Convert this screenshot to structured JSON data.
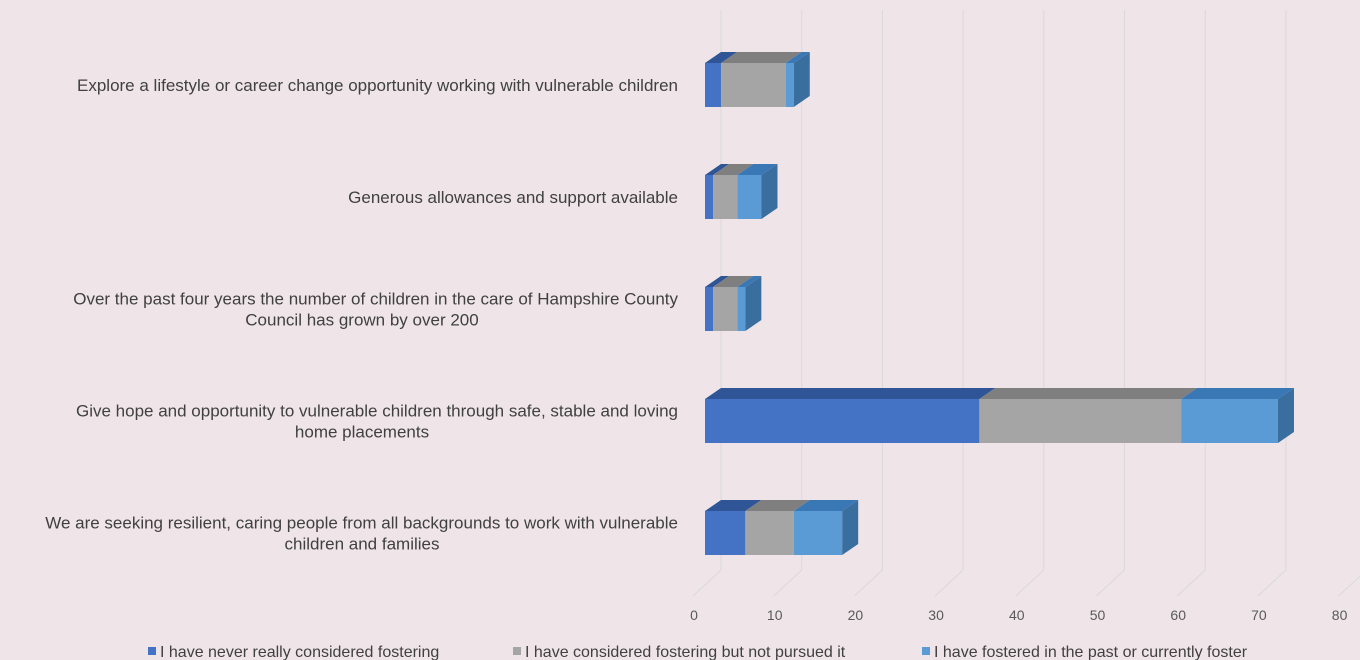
{
  "chart_data": {
    "type": "bar",
    "orientation": "horizontal",
    "stacked": true,
    "style": "3d",
    "categories": [
      [
        "Explore a lifestyle or career change opportunity working with vulnerable children"
      ],
      [
        "Generous allowances and support available"
      ],
      [
        "Over the past four years the number of children in the care of Hampshire County",
        "Council has grown by over 200"
      ],
      [
        "Give hope and opportunity to vulnerable children through safe, stable and loving",
        "home placements"
      ],
      [
        "We are seeking resilient, caring people from all backgrounds to work with vulnerable",
        "children and families"
      ]
    ],
    "series": [
      {
        "name": "I have never really considered fostering",
        "color": "#4472c4",
        "top_color": "#2f5597",
        "side_color": "#2f5597",
        "values": [
          2,
          1,
          1,
          34,
          5
        ]
      },
      {
        "name": "I have considered fostering but not pursued it",
        "color": "#a5a5a5",
        "top_color": "#7f7f7f",
        "side_color": "#7f7f7f",
        "values": [
          8,
          3,
          3,
          25,
          6
        ]
      },
      {
        "name": "I have fostered in the past or currently foster",
        "color": "#5b9bd5",
        "top_color": "#3a78b5",
        "side_color": "#3a6e9e",
        "values": [
          1,
          3,
          1,
          12,
          6
        ]
      }
    ],
    "xlim": [
      0,
      80
    ],
    "xticks": [
      0,
      10,
      20,
      30,
      40,
      50,
      60,
      70,
      80
    ],
    "grid": true,
    "legend_position": "bottom"
  }
}
